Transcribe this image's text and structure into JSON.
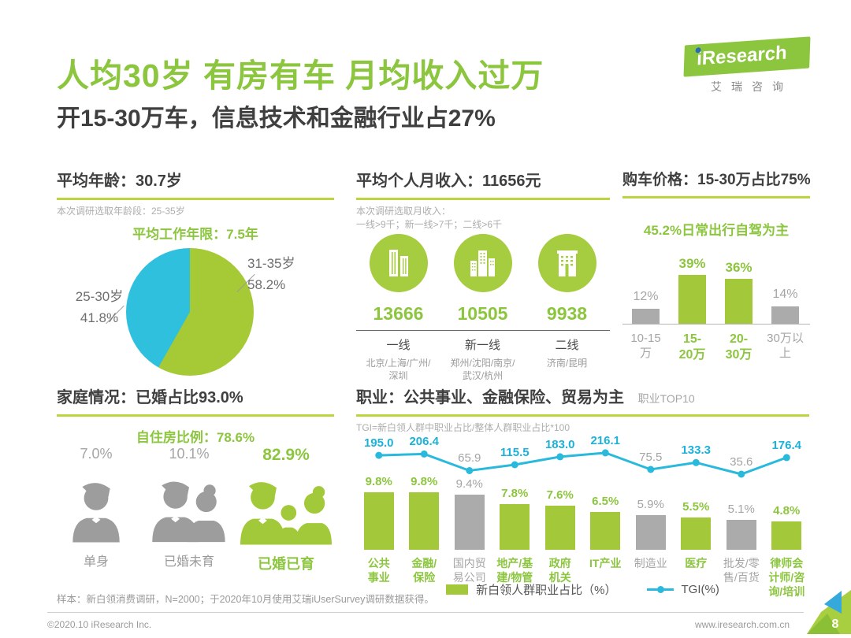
{
  "header": {
    "title": "人均30岁 有房有车 月均收入过万",
    "subtitle": "开15-30万车，信息技术和金融行业占27%",
    "logo": {
      "brand": "iResearch",
      "brand_cn": "艾瑞咨询"
    }
  },
  "age_section": {
    "title": "平均年龄：30.7岁",
    "note": "本次调研选取年龄段：25-35岁",
    "highlight": "平均工作年限：7.5年",
    "label_right_name": "31-35岁",
    "label_right_value": "58.2%",
    "label_left_name": "25-30岁",
    "label_left_value": "41.8%"
  },
  "income_section": {
    "title": "平均个人月收入：11656元",
    "note_line1": "本次调研选取月收入：",
    "note_line2": "一线>9千；新一线>7千；二线>6千",
    "tiers": [
      {
        "value": "13666",
        "tier": "一线",
        "cities": "北京/上海/广州/\n深圳"
      },
      {
        "value": "10505",
        "tier": "新一线",
        "cities": "郑州/沈阳/南京/\n武汉/杭州"
      },
      {
        "value": "9938",
        "tier": "二线",
        "cities": "济南/昆明"
      }
    ]
  },
  "car_section": {
    "title": "购车价格：15-30万占比75%",
    "highlight": "45.2%日常出行自驾为主"
  },
  "family_section": {
    "title": "家庭情况：已婚占比93.0%",
    "highlight": "自住房比例：78.6%",
    "groups": [
      {
        "value": "7.0%",
        "label": "单身",
        "highlighted": false
      },
      {
        "value": "10.1%",
        "label": "已婚未育",
        "highlighted": false
      },
      {
        "value": "82.9%",
        "label": "已婚已育",
        "highlighted": true
      }
    ]
  },
  "occupation_section": {
    "title": "职业：公共事业、金融保险、贸易为主",
    "tag": "职业TOP10",
    "note": "TGI=新白领人群中职业占比/整体人群职业占比*100",
    "legend_bar": "新白领人群职业占比（%）",
    "legend_line": "TGI(%)"
  },
  "chart_data": [
    {
      "id": "age_pie",
      "type": "pie",
      "title": "平均年龄分布",
      "labels": [
        "31-35岁",
        "25-30岁"
      ],
      "values": [
        58.2,
        41.8
      ],
      "colors": [
        "#a6ca35",
        "#2fc0dd"
      ],
      "legend_position": "outside"
    },
    {
      "id": "car_price_bar",
      "type": "bar",
      "title": "购车价格占比",
      "categories": [
        "10-15万",
        "15-20万",
        "20-30万",
        "30万以上"
      ],
      "category_labels": [
        "10-15\n万",
        "15-\n20万",
        "20-\n30万",
        "30万以\n上"
      ],
      "values": [
        12,
        39,
        36,
        14
      ],
      "unit": "%",
      "ylim": [
        0,
        45
      ],
      "grid": false,
      "highlighted": [
        false,
        true,
        true,
        false
      ],
      "colors": {
        "highlight": "#a3c93a",
        "normal": "#ababab"
      }
    },
    {
      "id": "occupation_combo",
      "type": "bar+line",
      "title": "职业TOP10",
      "categories": [
        "公共事业",
        "金融/保险",
        "国内贸易公司",
        "地产/基建/物管",
        "政府机关",
        "IT产业",
        "制造业",
        "医疗",
        "批发/零售/百货",
        "律师会计师/咨询/培训"
      ],
      "category_labels": [
        "公共\n事业",
        "金融/\n保险",
        "国内贸\n易公司",
        "地产/基\n建/物管",
        "政府\n机关",
        "IT产业",
        "制造业",
        "医疗",
        "批发/零\n售/百货",
        "律师会\n计师/咨\n询/培训"
      ],
      "series": [
        {
          "name": "新白领人群职业占比（%）",
          "type": "bar",
          "unit": "%",
          "values": [
            9.8,
            9.8,
            9.4,
            7.8,
            7.6,
            6.5,
            5.9,
            5.5,
            5.1,
            4.8
          ]
        },
        {
          "name": "TGI(%)",
          "type": "line",
          "values": [
            195.0,
            206.4,
            65.9,
            115.5,
            183.0,
            216.1,
            75.5,
            133.3,
            35.6,
            176.4
          ]
        }
      ],
      "highlighted": [
        true,
        true,
        false,
        true,
        true,
        true,
        false,
        true,
        false,
        true
      ],
      "colors": {
        "bar_highlight": "#a3c93a",
        "bar_normal": "#ababab",
        "line": "#29b9dc"
      },
      "legend_position": "bottom"
    }
  ],
  "footer": {
    "sample_note": "样本：新白领消费调研，N=2000；于2020年10月使用艾瑞iUserSurvey调研数据获得。",
    "copyright": "©2020.10 iResearch Inc.",
    "website": "www.iresearch.com.cn",
    "page_number": "8"
  }
}
